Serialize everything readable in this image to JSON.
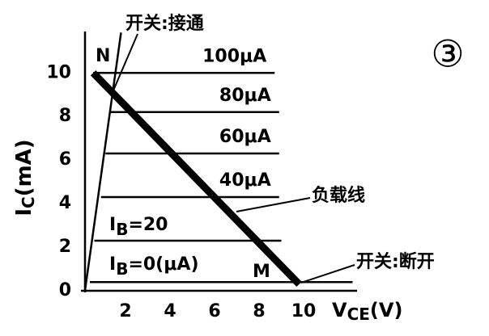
{
  "chart_data": {
    "type": "line",
    "xlim": [
      0,
      12.4
    ],
    "ylim": [
      0,
      11.9
    ],
    "xticks": [
      2,
      4,
      6,
      8,
      10
    ],
    "yticks": [
      0,
      2,
      4,
      6,
      8,
      10
    ],
    "x_label": {
      "main": "V",
      "sub": "CE",
      "unit": "(V)"
    },
    "y_label": {
      "main": "I",
      "sub": "C",
      "unit": "(mA)"
    },
    "series": [
      {
        "name": "100μA",
        "color": "#000",
        "x": [
          0.55,
          8.7
        ],
        "values": [
          10,
          10
        ]
      },
      {
        "name": "80μA",
        "color": "#000",
        "x": [
          1.3,
          8.9
        ],
        "values": [
          8.2,
          8.2
        ]
      },
      {
        "name": "60μA",
        "color": "#000",
        "x": [
          1.1,
          8.9
        ],
        "values": [
          6.3,
          6.3
        ]
      },
      {
        "name": "40μA",
        "color": "#000",
        "x": [
          0.9,
          8.9
        ],
        "values": [
          4.3,
          4.3
        ]
      },
      {
        "color": "#000",
        "x": [
          0.6,
          9
        ],
        "values": [
          2.3,
          2.3
        ]
      },
      {
        "color": "#000",
        "x": [
          0.4,
          12.2
        ],
        "values": [
          0.4,
          0.4
        ]
      },
      {
        "color": "#000",
        "x": [
          0.18,
          1.8
        ],
        "values": [
          0,
          11.85
        ]
      },
      {
        "name": "负载线",
        "color": "#000",
        "x": [
          0.55,
          9.8
        ],
        "values": [
          10,
          0.3
        ]
      }
    ],
    "annotations": {
      "switch_on": "开关:接通",
      "switch_off": "开关:断开",
      "point_n": "N",
      "point_m": "M",
      "figure_number": "③",
      "ib20": "I",
      "ib20_sub": "B",
      "ib20_rest": "=20",
      "ib0": "I",
      "ib0_sub": "B",
      "ib0_rest": "=0(μA)"
    }
  }
}
